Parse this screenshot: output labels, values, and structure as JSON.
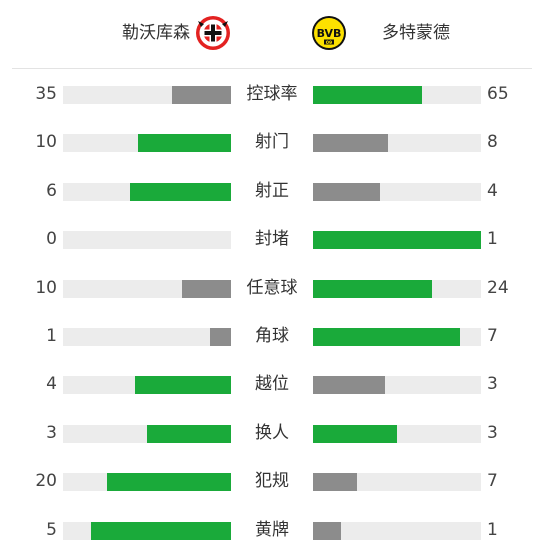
{
  "home_team": {
    "name": "勒沃库森",
    "logo_text": "BAYER 04 LEVERKUSEN"
  },
  "away_team": {
    "name": "多特蒙德",
    "logo_text": "BVB 09"
  },
  "colors": {
    "win": "#1aaa3a",
    "lose": "#8c8c8c",
    "track": "#ececec"
  },
  "stats": [
    {
      "label": "控球率",
      "home": 35,
      "away": 65
    },
    {
      "label": "射门",
      "home": 10,
      "away": 8
    },
    {
      "label": "射正",
      "home": 6,
      "away": 4
    },
    {
      "label": "封堵",
      "home": 0,
      "away": 1
    },
    {
      "label": "任意球",
      "home": 10,
      "away": 24
    },
    {
      "label": "角球",
      "home": 1,
      "away": 7
    },
    {
      "label": "越位",
      "home": 4,
      "away": 3
    },
    {
      "label": "换人",
      "home": 3,
      "away": 3
    },
    {
      "label": "犯规",
      "home": 20,
      "away": 7
    },
    {
      "label": "黄牌",
      "home": 5,
      "away": 1
    }
  ]
}
